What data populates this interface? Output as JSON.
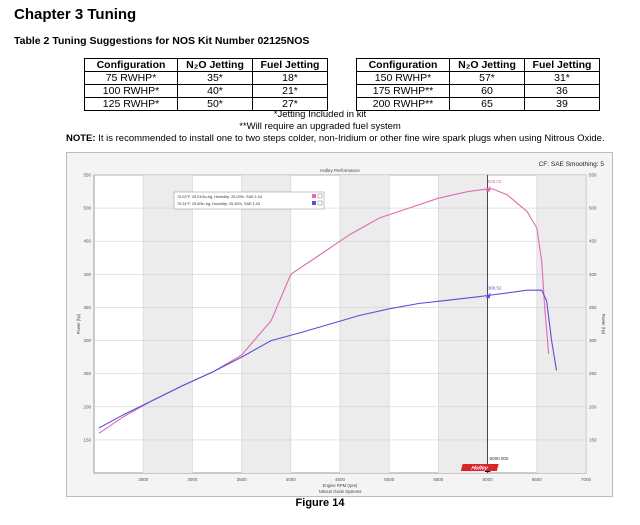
{
  "chapter_title": "Chapter 3 Tuning",
  "table_title": "Table 2 Tuning Suggestions for NOS Kit Number 02125NOS",
  "table_headers": [
    "Configuration",
    "N₂O Jetting",
    "Fuel Jetting"
  ],
  "table_left_rows": [
    [
      "75 RWHP*",
      "35*",
      "18*"
    ],
    [
      "100 RWHP*",
      "40*",
      "21*"
    ],
    [
      "125 RWHP*",
      "50*",
      "27*"
    ]
  ],
  "table_right_rows": [
    [
      "150 RWHP*",
      "57*",
      "31*"
    ],
    [
      "175 RWHP**",
      "60",
      "36"
    ],
    [
      "200 RWHP**",
      "65",
      "39"
    ]
  ],
  "footnote_1": "*Jetting Included in kit",
  "footnote_2": "**Will require an upgraded fuel system",
  "note_label": "NOTE:",
  "note_text": "It is recommended to install one to two steps colder, non-Iridium or other fine wire spark plugs when using Nitrous Oxide.",
  "figure_caption": "Figure 14",
  "chart_data": {
    "type": "line",
    "title": "Holley Performance",
    "cf_label": "CF: SAE Smoothing: 5",
    "xlabel": "Engine RPM (rpm)",
    "ylabel": "Power (hp)",
    "ylabel_right": "Power (hp)",
    "footer": "Nitrous Oxide Systems",
    "brand": "Holley",
    "xlim": [
      2000,
      7000
    ],
    "ylim": [
      100,
      550
    ],
    "x_ticks": [
      "2500",
      "3000",
      "3500",
      "4000",
      "4500",
      "5000",
      "5500",
      "6000",
      "6500",
      "7000"
    ],
    "y_ticks": [
      "150",
      "200",
      "250",
      "300",
      "350",
      "400",
      "450",
      "500",
      "550"
    ],
    "legend": [
      {
        "text": "75.03°F, 29.010in-hg, Humidity: 25.03%, SAE:1.04",
        "color": "#e06bb0"
      },
      {
        "text": "75.24°F, 29.50in-hg, Humidity: 25.45%, SAE:1.03",
        "color": "#5b4fd6"
      }
    ],
    "cursor_x": 6000,
    "cursor_label": "6000.000",
    "series": [
      {
        "color": "#e06bb0",
        "peak_label": "529.02",
        "x": [
          2050,
          2300,
          2600,
          2900,
          3200,
          3500,
          3800,
          4000,
          4300,
          4600,
          4900,
          5200,
          5500,
          5800,
          6000,
          6050,
          6200,
          6400,
          6500,
          6550,
          6580,
          6620
        ],
        "y": [
          160,
          185,
          210,
          232,
          252,
          278,
          330,
          400,
          430,
          460,
          485,
          500,
          515,
          525,
          529,
          529,
          520,
          495,
          470,
          420,
          350,
          280
        ]
      },
      {
        "color": "#5b4fd6",
        "peak_label": "368.52",
        "x": [
          2050,
          2300,
          2600,
          2900,
          3200,
          3500,
          3800,
          4100,
          4400,
          4700,
          5000,
          5300,
          5600,
          5900,
          6000,
          6200,
          6400,
          6550,
          6600,
          6650,
          6700
        ],
        "y": [
          168,
          188,
          210,
          232,
          252,
          275,
          300,
          312,
          325,
          338,
          348,
          356,
          361,
          366,
          368,
          372,
          376,
          376,
          360,
          300,
          255
        ]
      }
    ]
  }
}
